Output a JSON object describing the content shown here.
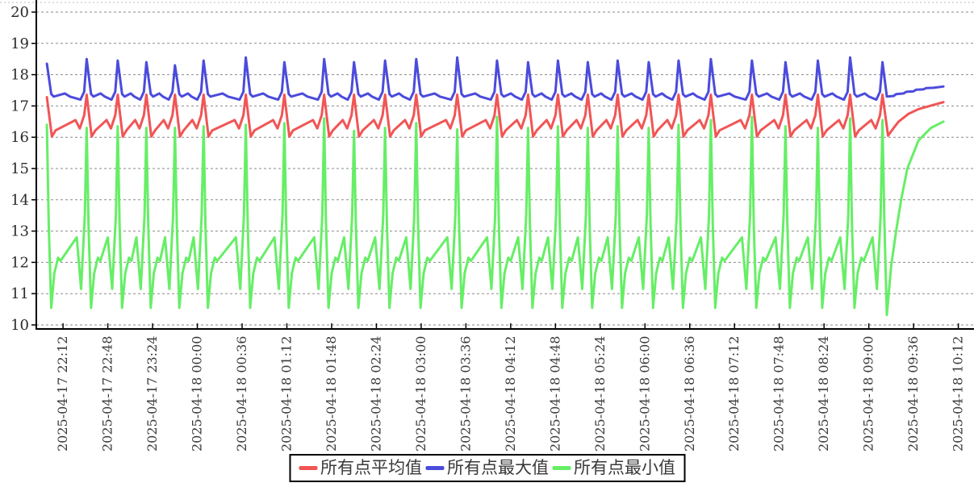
{
  "page": {
    "background": "#ffffff"
  },
  "chart_data": {
    "type": "line",
    "title": "",
    "xlabel": "",
    "ylabel": "",
    "grid": {
      "horizontal": "dashed",
      "vertical": "none",
      "color": "#8a8a8a"
    },
    "legend_position": "bottom-center",
    "x_axis": {
      "min_minute": -21.5,
      "max_minute": 730,
      "tick_minutes": [
        0,
        36,
        72,
        108,
        144,
        180,
        216,
        252,
        288,
        324,
        360,
        396,
        432,
        468,
        504,
        540,
        576,
        612,
        648,
        684,
        720
      ],
      "tick_labels": [
        "2025-04-17 22:12",
        "2025-04-17 22:48",
        "2025-04-17 23:24",
        "2025-04-18 00:00",
        "2025-04-18 00:36",
        "2025-04-18 01:12",
        "2025-04-18 01:48",
        "2025-04-18 02:24",
        "2025-04-18 03:00",
        "2025-04-18 03:36",
        "2025-04-18 04:12",
        "2025-04-18 04:48",
        "2025-04-18 05:24",
        "2025-04-18 06:00",
        "2025-04-18 06:36",
        "2025-04-18 07:12",
        "2025-04-18 07:48",
        "2025-04-18 08:24",
        "2025-04-18 09:00",
        "2025-04-18 09:36",
        "2025-04-18 10:12"
      ]
    },
    "y_axis": {
      "min": 10,
      "max": 20,
      "tick_step": 1,
      "tick_labels": [
        "10",
        "11",
        "12",
        "13",
        "14",
        "15",
        "16",
        "17",
        "18",
        "19",
        "20"
      ]
    },
    "spike_minutes": [
      -13,
      19,
      44,
      67,
      90,
      113,
      147,
      178,
      210,
      234,
      259,
      284,
      317,
      349,
      374,
      398,
      422,
      446,
      471,
      495,
      521,
      554,
      581,
      607,
      633,
      659
    ],
    "data_end_minute": 708,
    "series": [
      {
        "key": "average",
        "name": "所有点平均值",
        "color": "#f15555",
        "peak_value": 17.36,
        "peak_values": [
          17.28,
          17.36,
          17.36,
          17.36,
          17.36,
          17.36,
          17.36,
          17.36,
          17.36,
          17.36,
          17.36,
          17.36,
          17.36,
          17.36,
          17.36,
          17.36,
          17.36,
          17.36,
          17.36,
          17.36,
          17.36,
          17.36,
          17.36,
          17.36,
          17.36,
          17.36
        ],
        "after_spike": [
          [
            4,
            16.02
          ],
          [
            7,
            16.22
          ]
        ],
        "frac_points": [],
        "before_next": [
          [
            9,
            16.55
          ],
          [
            5.5,
            16.28
          ],
          [
            2,
            16.7
          ]
        ],
        "tail": [
          [
            663.5,
            16.05
          ],
          [
            668,
            16.3
          ],
          [
            672,
            16.5
          ],
          [
            680,
            16.75
          ],
          [
            688,
            16.9
          ],
          [
            697,
            17.0
          ],
          [
            708,
            17.12
          ]
        ]
      },
      {
        "key": "maximum",
        "name": "所有点最大值",
        "color": "#4b4bdc",
        "peak_value": 18.46,
        "peak_values": [
          18.35,
          18.5,
          18.45,
          18.4,
          18.3,
          18.45,
          18.55,
          18.4,
          18.5,
          18.4,
          18.45,
          18.5,
          18.55,
          18.45,
          18.4,
          18.45,
          18.4,
          18.45,
          18.4,
          18.45,
          18.5,
          18.45,
          18.4,
          18.45,
          18.55,
          18.4
        ],
        "after_spike": [
          [
            3.5,
            17.38
          ],
          [
            5.5,
            17.3
          ]
        ],
        "frac_points": [
          [
            0.45,
            17.4
          ],
          [
            0.58,
            17.3
          ]
        ],
        "before_next": [
          [
            5,
            17.2
          ],
          [
            2,
            17.45
          ]
        ],
        "tail": [
          [
            662.5,
            17.3
          ],
          [
            668,
            17.32
          ],
          [
            670,
            17.38
          ],
          [
            676,
            17.4
          ],
          [
            678,
            17.45
          ],
          [
            684,
            17.47
          ],
          [
            686,
            17.52
          ],
          [
            692,
            17.53
          ],
          [
            694,
            17.57
          ],
          [
            700,
            17.58
          ],
          [
            708,
            17.62
          ]
        ]
      },
      {
        "key": "minimum",
        "name": "所有点最小值",
        "color": "#66ee66",
        "peak_value": 16.42,
        "peak_values": [
          16.4,
          16.3,
          16.35,
          16.3,
          16.3,
          16.35,
          16.4,
          16.45,
          16.6,
          16.2,
          16.3,
          16.45,
          16.25,
          16.65,
          16.3,
          16.35,
          16.3,
          16.35,
          16.3,
          16.4,
          16.55,
          16.65,
          16.35,
          16.3,
          16.6,
          16.55
        ],
        "after_spike": [
          [
            1.5,
            13.2
          ],
          [
            3.5,
            10.55
          ],
          [
            6,
            11.65
          ],
          [
            9,
            12.15
          ],
          [
            11,
            12.05
          ]
        ],
        "frac_points": [],
        "before_next": [
          [
            8,
            12.8
          ],
          [
            4.5,
            11.15
          ],
          [
            1.5,
            13.5
          ]
        ],
        "tail": [
          [
            660.5,
            13.3
          ],
          [
            662.5,
            10.32
          ],
          [
            666,
            11.9
          ],
          [
            670,
            13.0
          ],
          [
            674,
            14.0
          ],
          [
            679,
            15.0
          ],
          [
            688,
            15.9
          ],
          [
            698,
            16.3
          ],
          [
            708,
            16.5
          ]
        ]
      }
    ]
  }
}
